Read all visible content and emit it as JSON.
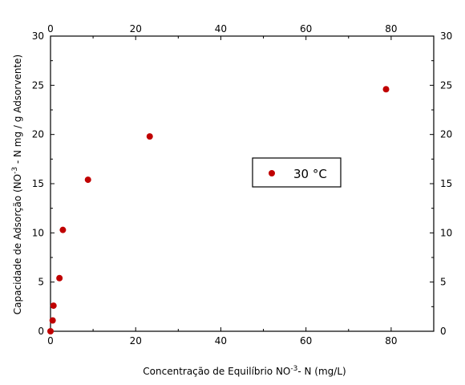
{
  "chart_data": {
    "type": "scatter",
    "xlabel_main": "Concentração de Equilíbrio NO",
    "xlabel_sup": "-3",
    "xlabel_tail": "- N (mg/L)",
    "ylabel_main": "Capacidade de Adsorção (NO",
    "ylabel_sup": "-3",
    "ylabel_tail": " - N mg / g Adsorvente)",
    "xlim": [
      0,
      90
    ],
    "ylim": [
      0,
      30
    ],
    "x_ticks": [
      0,
      20,
      40,
      60,
      80
    ],
    "y_ticks": [
      0,
      5,
      10,
      15,
      20,
      25,
      30
    ],
    "x_tick_labels": [
      "0",
      "20",
      "40",
      "60",
      "80"
    ],
    "y_tick_labels": [
      "0",
      "5",
      "10",
      "15",
      "20",
      "25",
      "30"
    ],
    "series": [
      {
        "name": "30 °C",
        "color": "#c00000",
        "x": [
          0.0,
          0.5,
          0.7,
          2.1,
          2.9,
          8.8,
          23.3,
          78.8
        ],
        "y": [
          0.0,
          1.1,
          2.6,
          5.4,
          10.3,
          15.4,
          19.8,
          24.6
        ]
      }
    ],
    "legend_position": "center-right",
    "grid": false,
    "mirror_axes": true
  }
}
